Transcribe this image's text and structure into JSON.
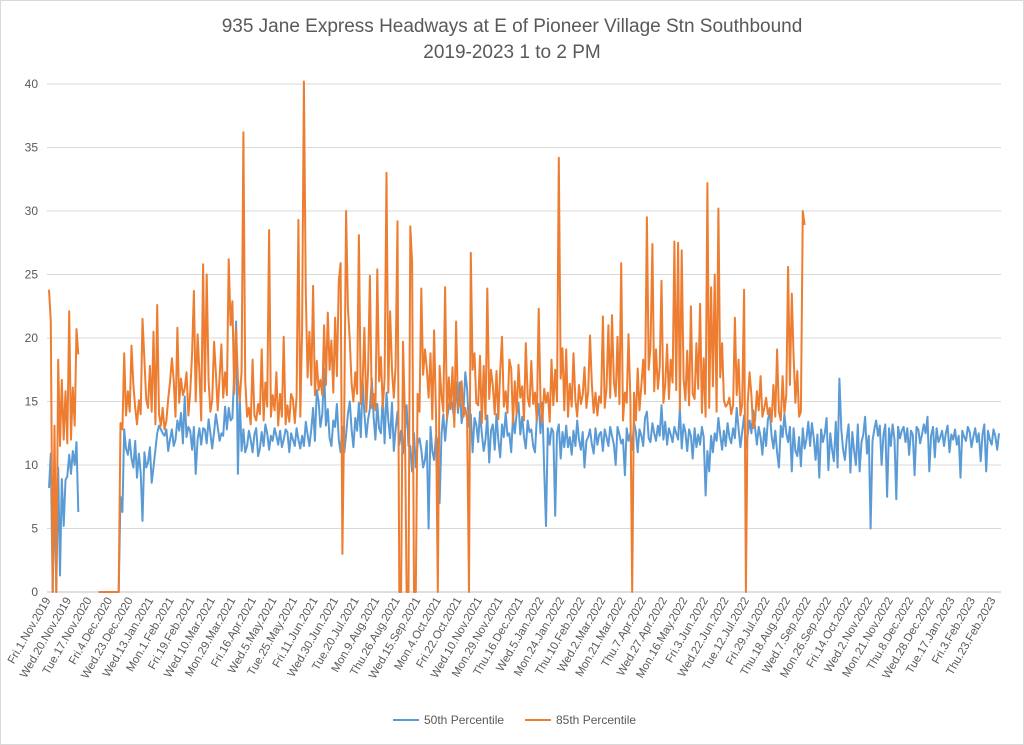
{
  "chart_data": {
    "type": "line",
    "title_line1": "935 Jane Express Headways at E of Pioneer Village Stn Southbound",
    "title_line2": "2019-2023 1 to 2 PM",
    "xlabel": "",
    "ylabel": "",
    "ylim": [
      0,
      40
    ],
    "yticks": [
      "0",
      "5",
      "10",
      "15",
      "20",
      "25",
      "30",
      "35",
      "40"
    ],
    "grid": true,
    "legend_position": "bottom",
    "x_tick_labels": [
      "Fri.1.Nov.2019",
      "Wed.20.Nov.2019",
      "Tue.17.Nov.2020",
      "Fri.4.Dec.2020",
      "Wed.23.Dec.2020",
      "Wed.13.Jan.2021",
      "Mon.1.Feb.2021",
      "Fri.19.Feb.2021",
      "Wed.10.Mar.2021",
      "Mon.29.Mar.2021",
      "Fri.16.Apr.2021",
      "Wed.5.May.2021",
      "Tue.25.May.2021",
      "Fri.11.Jun.2021",
      "Wed.30.Jun.2021",
      "Tue.20.Jul.2021",
      "Mon.9.Aug.2021",
      "Thu.26.Aug.2021",
      "Wed.15.Sep.2021",
      "Mon.4.Oct.2021",
      "Fri.22.Oct.2021",
      "Wed.10.Nov.2021",
      "Mon.29.Nov.2021",
      "Thu.16.Dec.2021",
      "Wed.5.Jan.2022",
      "Mon.24.Jan.2022",
      "Thu.10.Feb.2022",
      "Wed.2.Mar.2022",
      "Mon.21.Mar.2022",
      "Thu.7.Apr.2022",
      "Wed.27.Apr.2022",
      "Mon.16.May.2022",
      "Fri.3.Jun.2022",
      "Wed.22.Jun.2022",
      "Tue.12.Jul.2022",
      "Fri.29.Jul.2022",
      "Thu.18.Aug.2022",
      "Wed.7.Sep.2022",
      "Mon.26.Sep.2022",
      "Fri.14.Oct.2022",
      "Wed.2.Nov.2022",
      "Mon.21.Nov.2022",
      "Thu.8.Dec.2022",
      "Wed.28.Dec.2022",
      "Tue.17.Jan.2023",
      "Fri.3.Feb.2023",
      "Thu.23.Feb.2023"
    ],
    "series": [
      {
        "name": "50th Percentile",
        "color": "#5b9bd5",
        "values": [
          8.2,
          10.9,
          0,
          8.4,
          0,
          9.8,
          1.3,
          8.9,
          5.2,
          8.8,
          9.1,
          10.8,
          9.3,
          11.1,
          10.0,
          11.8,
          6.3,
          null,
          null,
          null,
          null,
          null,
          null,
          null,
          null,
          null,
          null,
          0,
          0,
          0,
          0,
          0,
          0,
          0,
          0,
          0,
          0,
          0,
          0,
          7.5,
          6.3,
          12.8,
          11.3,
          10.8,
          12.0,
          10.5,
          9.8,
          11.9,
          9.0,
          10.9,
          9.4,
          5.6,
          11.0,
          9.8,
          10.2,
          11.4,
          8.6,
          9.8,
          11.2,
          12.5,
          13.1,
          12.8,
          12.5,
          12.3,
          12.8,
          11.1,
          12.0,
          12.8,
          11.5,
          12.0,
          13.5,
          12.7,
          14.1,
          11.7,
          15.4,
          12.2,
          13.0,
          12.7,
          11.2,
          13.0,
          9.3,
          12.0,
          12.9,
          11.6,
          12.9,
          12.8,
          11.7,
          13.6,
          12.5,
          11.3,
          12.6,
          14.0,
          13.0,
          11.9,
          12.5,
          12.3,
          14.6,
          12.8,
          14.5,
          13.5,
          13.7,
          17.3,
          21.3,
          9.3,
          15.5,
          11.1,
          12.8,
          11.0,
          11.5,
          12.7,
          12.0,
          11.0,
          12.4,
          12.9,
          10.7,
          11.3,
          12.6,
          11.5,
          13.2,
          12.5,
          11.2,
          12.3,
          11.9,
          12.9,
          12.3,
          11.6,
          12.7,
          11.4,
          12.0,
          12.8,
          12.6,
          11.0,
          12.5,
          12.0,
          11.5,
          12.9,
          12.0,
          11.3,
          12.3,
          11.5,
          13.4,
          12.4,
          11.5,
          12.8,
          14.5,
          11.9,
          15.9,
          15.0,
          13.0,
          14.0,
          17.6,
          13.1,
          14.4,
          12.1,
          11.5,
          13.5,
          13.0,
          14.8,
          12.0,
          11.0,
          13.0,
          11.0,
          12.4,
          14.0,
          15.0,
          12.8,
          11.4,
          13.7,
          12.7,
          14.9,
          12.2,
          16.7,
          14.0,
          12.2,
          13.6,
          14.4,
          16.8,
          13.8,
          12.0,
          14.8,
          12.9,
          12.5,
          15.5,
          11.7,
          15.7,
          13.5,
          12.1,
          14.9,
          11.1,
          12.8,
          14.2,
          11.6,
          12.7,
          10.9,
          12.5,
          14.7,
          11.5,
          11.5,
          9.5,
          12.5,
          9.8,
          11.7,
          12.1,
          11.2,
          9.8,
          10.4,
          11.9,
          5.0,
          13.0,
          11.1,
          10.4,
          12.3,
          11.8,
          7.0,
          12.4,
          14.0,
          11.9,
          13.7,
          14.5,
          15.2,
          14.7,
          13.5,
          16.5,
          14.1,
          16.5,
          13.3,
          14.3,
          17.3,
          16.0,
          13.0,
          14.0,
          11.0,
          13.7,
          13.2,
          11.8,
          14.2,
          12.5,
          11.1,
          12.0,
          13.9,
          10.2,
          12.7,
          13.2,
          11.2,
          14.0,
          12.0,
          10.6,
          13.2,
          12.2,
          14.1,
          12.3,
          12.5,
          11.0,
          13.8,
          12.5,
          14.1,
          14.9,
          12.4,
          13.8,
          12.2,
          11.3,
          13.5,
          12.6,
          12.8,
          11.5,
          11.0,
          13.7,
          14.8,
          12.5,
          14.9,
          9.6,
          5.2,
          12.9,
          11.6,
          12.9,
          12.6,
          6.0,
          12.5,
          13.2,
          10.5,
          12.6,
          11.4,
          13.1,
          11.4,
          12.2,
          10.8,
          12.7,
          11.5,
          13.5,
          12.0,
          11.2,
          12.6,
          9.8,
          11.9,
          12.2,
          12.8,
          11.6,
          10.9,
          12.9,
          11.6,
          12.4,
          12.6,
          11.1,
          12.8,
          12.2,
          11.5,
          13.0,
          12.3,
          11.6,
          10.0,
          13.0,
          12.4,
          11.7,
          12.0,
          9.2,
          12.9,
          11.9,
          12.5,
          11.2,
          13.4,
          12.6,
          11.0,
          12.8,
          12.3,
          11.5,
          13.7,
          14.2,
          12.1,
          11.8,
          13.3,
          12.5,
          11.9,
          13.1,
          12.3,
          14.7,
          12.0,
          13.4,
          11.6,
          12.9,
          12.4,
          11.8,
          13.0,
          12.5,
          12.0,
          14.5,
          11.3,
          13.2,
          12.6,
          11.1,
          12.8,
          12.3,
          10.5,
          12.9,
          11.4,
          12.4,
          11.6,
          13.0,
          12.2,
          7.6,
          11.1,
          9.5,
          12.3,
          11.0,
          12.5,
          11.9,
          13.7,
          12.4,
          11.2,
          12.7,
          11.5,
          13.3,
          12.2,
          11.7,
          12.9,
          12.1,
          14.5,
          12.8,
          11.4,
          12.6,
          13.9,
          11.3,
          12.4,
          13.5,
          12.5,
          14.3,
          12.9,
          11.6,
          13.0,
          12.2,
          10.8,
          12.9,
          11.5,
          13.6,
          14.1,
          12.3,
          11.3,
          12.7,
          11.0,
          9.8,
          13.1,
          12.2,
          14.0,
          12.5,
          11.8,
          13.0,
          9.5,
          12.9,
          11.1,
          10.7,
          12.2,
          9.9,
          12.9,
          11.3,
          12.0,
          13.4,
          11.5,
          13.3,
          12.1,
          10.4,
          12.4,
          9.0,
          12.8,
          11.8,
          12.5,
          13.7,
          9.6,
          12.5,
          11.2,
          10.3,
          13.4,
          9.8,
          16.8,
          12.8,
          11.2,
          10.4,
          12.1,
          13.2,
          9.4,
          12.6,
          11.1,
          10.0,
          13.2,
          9.5,
          11.8,
          12.4,
          13.8,
          10.9,
          12.3,
          5.0,
          11.9,
          12.8,
          13.5,
          12.3,
          13.1,
          10.0,
          12.4,
          13.2,
          7.5,
          12.9,
          11.5,
          13.2,
          12.0,
          7.3,
          13.0,
          12.1,
          12.7,
          13.0,
          11.8,
          12.9,
          10.8,
          12.7,
          12.4,
          9.2,
          13.0,
          12.8,
          11.7,
          12.4,
          13.2,
          12.5,
          13.8,
          9.5,
          12.3,
          13.0,
          10.6,
          12.9,
          11.8,
          12.2,
          12.7,
          11.5,
          12.5,
          13.1,
          11.0,
          12.4,
          12.0,
          12.8,
          11.6,
          12.3,
          9.0,
          12.7,
          12.2,
          11.9,
          13.0,
          12.6,
          11.4,
          12.2,
          12.9,
          11.8,
          12.5,
          10.3,
          12.4,
          13.2,
          9.5,
          12.7,
          12.0,
          11.6,
          12.8,
          12.3,
          11.2,
          12.5
        ]
      },
      {
        "name": "85th Percentile",
        "color": "#ed7d31",
        "values": [
          23.8,
          21.3,
          0,
          13.1,
          0,
          18.3,
          11.5,
          16.7,
          12.0,
          15.8,
          11.7,
          22.1,
          12.0,
          16.1,
          13.1,
          20.7,
          18.7,
          null,
          null,
          null,
          null,
          null,
          null,
          null,
          null,
          null,
          null,
          0,
          0,
          0,
          0,
          0,
          0,
          0,
          0,
          0,
          0,
          0,
          0,
          13.3,
          12.8,
          18.8,
          13.9,
          15.8,
          14.2,
          19.4,
          16.3,
          14.5,
          13.2,
          15.1,
          14.0,
          21.5,
          18.3,
          15.2,
          14.5,
          17.8,
          14.2,
          20.5,
          13.2,
          22.6,
          14.0,
          13.1,
          14.5,
          12.8,
          13.5,
          15.2,
          16.5,
          18.4,
          16.7,
          13.8,
          20.8,
          14.9,
          16.8,
          15.5,
          16.0,
          17.3,
          13.9,
          15.7,
          18.8,
          23.7,
          15.0,
          20.3,
          17.3,
          13.5,
          25.8,
          15.8,
          25.0,
          16.6,
          14.2,
          15.1,
          19.7,
          17.2,
          14.3,
          16.9,
          19.5,
          15.3,
          17.3,
          15.5,
          26.2,
          21.0,
          22.9,
          15.6,
          20.8,
          16.8,
          15.0,
          17.4,
          36.2,
          16.7,
          13.8,
          14.5,
          13.2,
          18.3,
          13.9,
          13.5,
          14.8,
          14.0,
          19.1,
          13.5,
          16.5,
          14.6,
          28.5,
          13.8,
          15.5,
          14.3,
          17.3,
          13.1,
          15.6,
          13.8,
          20.1,
          13.2,
          14.7,
          13.4,
          15.6,
          15.2,
          13.3,
          15.4,
          29.3,
          13.8,
          20.7,
          40.2,
          23.5,
          16.9,
          20.5,
          16.3,
          24.1,
          15.5,
          18.2,
          15.9,
          16.7,
          15.5,
          21.0,
          16.3,
          22.0,
          17.5,
          19.8,
          15.7,
          21.6,
          17.0,
          24.5,
          25.9,
          3.0,
          14.5,
          30.0,
          22.4,
          19.8,
          16.4,
          15.0,
          17.3,
          15.6,
          28.1,
          14.8,
          16.5,
          20.8,
          14.2,
          17.5,
          24.9,
          14.5,
          15.6,
          14.3,
          25.4,
          16.6,
          18.5,
          14.5,
          16.8,
          33.0,
          15.7,
          22.1,
          17.5,
          15.3,
          17.8,
          29.2,
          0,
          0,
          19.7,
          14.2,
          0,
          0,
          28.8,
          26.0,
          0,
          0,
          15.6,
          14.2,
          23.9,
          17.1,
          19.1,
          17.6,
          15.3,
          18.8,
          13.6,
          20.6,
          14.0,
          0,
          17.8,
          15.5,
          14.2,
          24.0,
          13.6,
          16.9,
          14.4,
          17.7,
          13.0,
          21.3,
          14.5,
          14.8,
          16.6,
          13.8,
          14.5,
          13.6,
          0,
          26.7,
          17.5,
          18.8,
          14.9,
          14.7,
          18.6,
          13.3,
          17.8,
          13.6,
          23.9,
          15.2,
          17.5,
          16.3,
          14.0,
          17.4,
          13.6,
          17.4,
          20.1,
          14.6,
          15.8,
          14.1,
          18.3,
          17.6,
          13.3,
          16.6,
          14.0,
          17.9,
          15.3,
          16.2,
          13.5,
          19.6,
          15.3,
          14.6,
          18.2,
          14.8,
          15.7,
          13.5,
          22.3,
          15.0,
          13.3,
          16.0,
          14.9,
          15.7,
          13.4,
          18.3,
          14.7,
          17.5,
          15.0,
          34.2,
          16.8,
          19.2,
          14.3,
          19.1,
          13.8,
          16.4,
          14.6,
          18.8,
          15.1,
          13.8,
          16.3,
          14.8,
          15.5,
          17.7,
          14.5,
          15.8,
          20.2,
          16.3,
          14.1,
          15.7,
          13.9,
          15.4,
          14.9,
          21.7,
          14.5,
          16.0,
          21.0,
          15.3,
          21.8,
          16.5,
          15.4,
          20.1,
          14.8,
          25.9,
          13.5,
          15.7,
          14.9,
          20.3,
          15.1,
          0,
          15.7,
          13.5,
          17.6,
          14.3,
          16.3,
          18.3,
          15.6,
          29.5,
          17.5,
          19.3,
          27.4,
          15.8,
          19.1,
          16.0,
          17.7,
          24.5,
          14.9,
          16.3,
          19.5,
          15.2,
          18.3,
          16.5,
          27.6,
          15.9,
          27.5,
          14.3,
          26.9,
          16.8,
          15.1,
          19.0,
          14.7,
          22.5,
          15.6,
          15.2,
          19.6,
          16.0,
          22.7,
          14.1,
          18.4,
          13.8,
          32.2,
          14.5,
          24.0,
          16.2,
          25.0,
          14.2,
          30.2,
          16.9,
          19.6,
          15.1,
          14.6,
          14.8,
          15.3,
          14.0,
          14.7,
          21.6,
          15.5,
          18.3,
          13.9,
          14.8,
          23.8,
          0,
          14.9,
          17.3,
          15.5,
          12.9,
          13.5,
          15.8,
          14.3,
          17.0,
          13.8,
          14.5,
          15.3,
          14.0,
          14.5,
          13.4,
          16.3,
          13.8,
          19.1,
          14.2,
          13.5,
          17.0,
          14.1,
          15.5,
          25.6,
          16.3,
          23.5,
          18.5,
          14.9,
          17.4,
          13.8,
          14.2,
          30.0,
          28.9
        ]
      }
    ]
  }
}
